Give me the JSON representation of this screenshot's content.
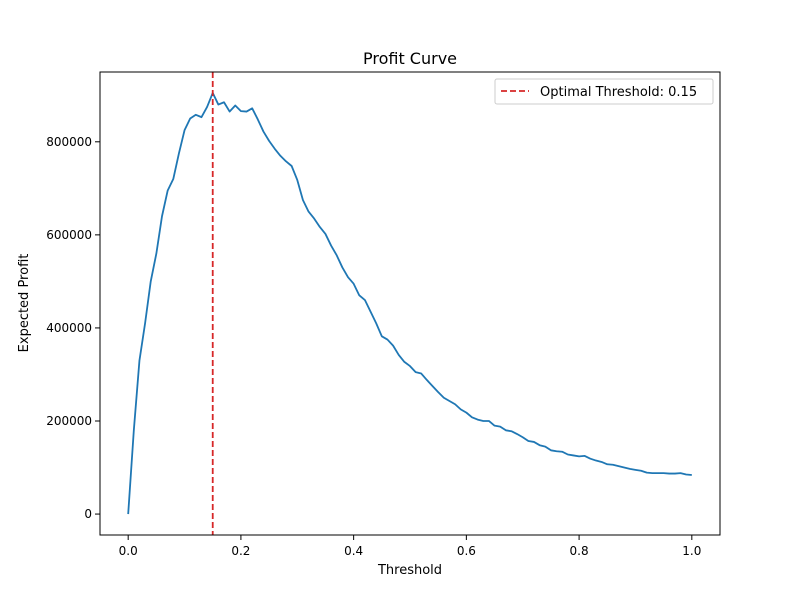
{
  "chart_data": {
    "type": "line",
    "title": "Profit Curve",
    "xlabel": "Threshold",
    "ylabel": "Expected Profit",
    "xlim": [
      -0.05,
      1.05
    ],
    "ylim": [
      -45000,
      950000
    ],
    "xticks": [
      0.0,
      0.2,
      0.4,
      0.6,
      0.8,
      1.0
    ],
    "xtick_labels": [
      "0.0",
      "0.2",
      "0.4",
      "0.6",
      "0.8",
      "1.0"
    ],
    "yticks": [
      0,
      200000,
      400000,
      600000,
      800000
    ],
    "ytick_labels": [
      "0",
      "200000",
      "400000",
      "600000",
      "800000"
    ],
    "grid": false,
    "legend_position": "top-right",
    "series": [
      {
        "color": "#1f77b4",
        "x": [
          0.0,
          0.01,
          0.02,
          0.03,
          0.04,
          0.05,
          0.06,
          0.07,
          0.08,
          0.09,
          0.1,
          0.11,
          0.12,
          0.13,
          0.14,
          0.15,
          0.16,
          0.17,
          0.18,
          0.19,
          0.2,
          0.21,
          0.22,
          0.23,
          0.24,
          0.25,
          0.26,
          0.27,
          0.28,
          0.29,
          0.3,
          0.31,
          0.32,
          0.33,
          0.34,
          0.35,
          0.36,
          0.37,
          0.38,
          0.39,
          0.4,
          0.41,
          0.42,
          0.43,
          0.44,
          0.45,
          0.46,
          0.47,
          0.48,
          0.49,
          0.5,
          0.51,
          0.52,
          0.53,
          0.54,
          0.55,
          0.56,
          0.57,
          0.58,
          0.59,
          0.6,
          0.61,
          0.62,
          0.63,
          0.64,
          0.65,
          0.66,
          0.67,
          0.68,
          0.69,
          0.7,
          0.71,
          0.72,
          0.73,
          0.74,
          0.75,
          0.76,
          0.77,
          0.78,
          0.79,
          0.8,
          0.81,
          0.82,
          0.83,
          0.84,
          0.85,
          0.86,
          0.87,
          0.88,
          0.89,
          0.9,
          0.91,
          0.92,
          0.93,
          0.94,
          0.95,
          0.96,
          0.97,
          0.98,
          0.99,
          1.0
        ],
        "y": [
          0,
          180000,
          330000,
          410000,
          500000,
          560000,
          640000,
          695000,
          720000,
          775000,
          825000,
          850000,
          858000,
          853000,
          875000,
          905000,
          880000,
          885000,
          865000,
          878000,
          866000,
          865000,
          872000,
          848000,
          822000,
          802000,
          785000,
          770000,
          758000,
          748000,
          718000,
          675000,
          650000,
          635000,
          617000,
          602000,
          577000,
          556000,
          530000,
          509000,
          495000,
          470000,
          460000,
          435000,
          410000,
          382000,
          375000,
          362000,
          342000,
          327000,
          318000,
          305000,
          302000,
          288000,
          275000,
          262000,
          250000,
          243000,
          236000,
          225000,
          218000,
          208000,
          203000,
          200000,
          200000,
          190000,
          188000,
          180000,
          178000,
          172000,
          165000,
          157000,
          155000,
          148000,
          145000,
          137000,
          135000,
          134000,
          128000,
          126000,
          124000,
          125000,
          119000,
          115000,
          112000,
          107000,
          106000,
          103000,
          100000,
          97000,
          95000,
          93000,
          89000,
          88000,
          88000,
          88000,
          87000,
          87000,
          88000,
          85000,
          84000
        ]
      }
    ],
    "reference_lines": [
      {
        "orientation": "vertical",
        "x": 0.15,
        "color": "#d62728",
        "style": "dashed",
        "label": "Optimal Threshold: 0.15"
      }
    ]
  }
}
